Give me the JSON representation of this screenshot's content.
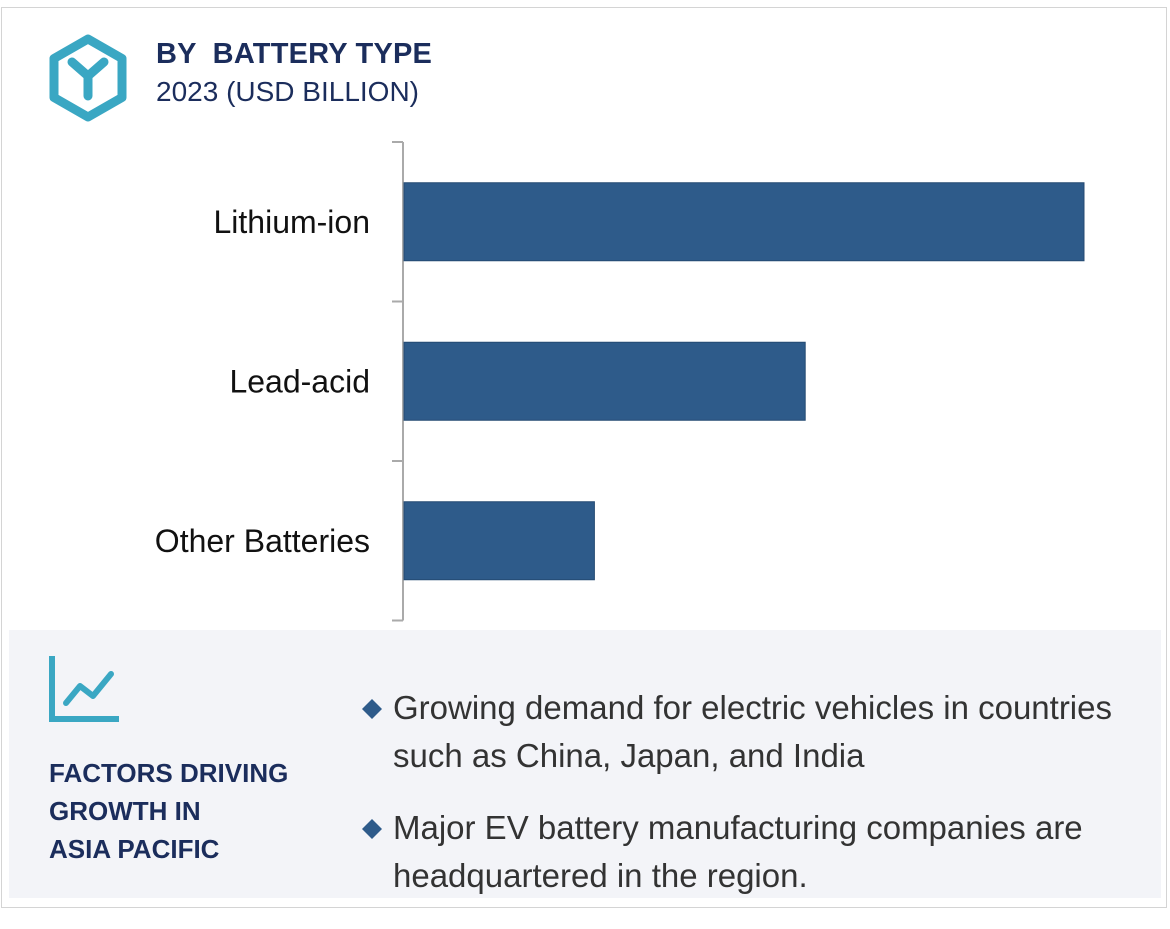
{
  "header": {
    "title": "BY  BATTERY TYPE",
    "subtitle": "2023 (USD BILLION)",
    "logo_icon": "hexagon-y-logo-icon"
  },
  "colors": {
    "bar": "#2e5b8a",
    "title": "#1b2d5c",
    "accent": "#3aa7c3",
    "panel": "#f3f4f8"
  },
  "chart_data": {
    "type": "bar",
    "orientation": "horizontal",
    "title": "BY  BATTERY TYPE",
    "subtitle": "2023 (USD BILLION)",
    "categories": [
      "Lithium-ion",
      "Lead-acid",
      "Other Batteries"
    ],
    "values": [
      100,
      59,
      28
    ],
    "xlim": [
      0,
      100
    ],
    "xlabel": "",
    "ylabel": "",
    "grid": false,
    "value_axis_visible": false
  },
  "factors": {
    "icon": "trend-chart-icon",
    "heading": [
      "FACTORS DRIVING",
      "GROWTH IN",
      "ASIA PACIFIC"
    ],
    "bullet_icon": "diamond-bullet-icon",
    "items": [
      "Growing demand for electric vehicles in countries such as China, Japan, and India",
      "Major EV battery manufacturing companies are headquartered in the region."
    ]
  }
}
